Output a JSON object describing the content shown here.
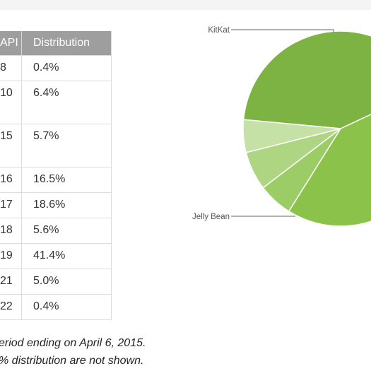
{
  "table": {
    "headers": [
      "API",
      "Distribution"
    ],
    "rows": [
      {
        "api": "8",
        "distribution": "0.4%"
      },
      {
        "api": "10",
        "distribution": "6.4%"
      },
      {
        "api": "15",
        "distribution": "5.7%"
      },
      {
        "api": "16",
        "distribution": "16.5%"
      },
      {
        "api": "17",
        "distribution": "18.6%"
      },
      {
        "api": "18",
        "distribution": "5.6%"
      },
      {
        "api": "19",
        "distribution": "41.4%"
      },
      {
        "api": "21",
        "distribution": "5.0%"
      },
      {
        "api": "22",
        "distribution": "0.4%"
      }
    ]
  },
  "notes": {
    "line1": "eriod ending on April 6, 2015.",
    "line2": "% distribution are not shown."
  },
  "chart_data": {
    "type": "pie",
    "slices": [
      {
        "name": "KitKat",
        "value": 41.4,
        "color": "#7cb342"
      },
      {
        "name": "Jelly Bean",
        "value": 40.7,
        "color": "#8bc34a"
      },
      {
        "name": "",
        "value": 5.7,
        "color": "#9ccc65"
      },
      {
        "name": "",
        "value": 6.4,
        "color": "#aed581"
      },
      {
        "name": "",
        "value": 5.4,
        "color": "#c5e1a5"
      }
    ],
    "labels": [
      "KitKat",
      "Jelly Bean"
    ]
  }
}
